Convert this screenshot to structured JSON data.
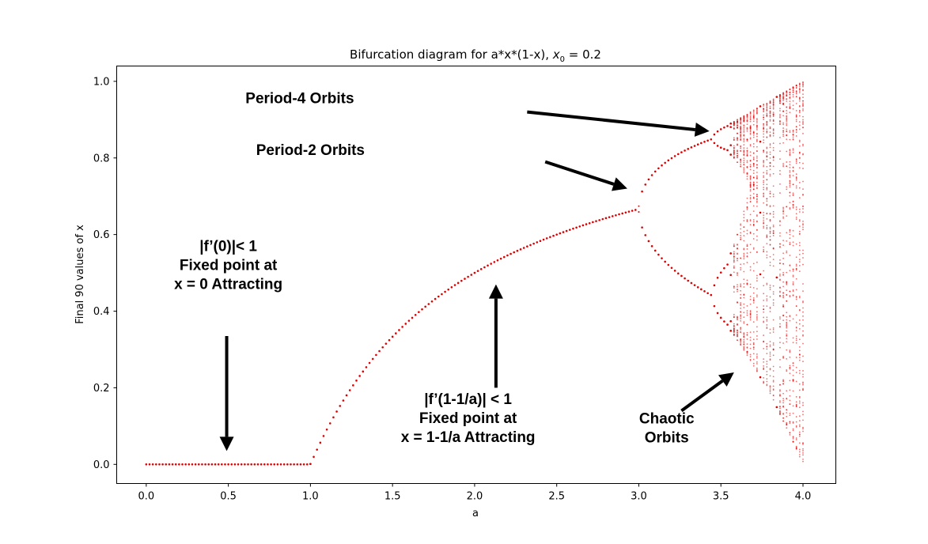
{
  "chart_data": {
    "type": "scatter",
    "title": "Bifurcation diagram for a*x*(1-x), ",
    "title_math": "x",
    "title_math_sub": "0",
    "title_math_rest": " = 0.2",
    "xlabel": "a",
    "ylabel": "Final 90 values of x",
    "xlim": [
      -0.18,
      4.2
    ],
    "ylim": [
      -0.05,
      1.04
    ],
    "xticks": [
      0.0,
      0.5,
      1.0,
      1.5,
      2.0,
      2.5,
      3.0,
      3.5,
      4.0
    ],
    "xtick_labels": [
      "0.0",
      "0.5",
      "1.0",
      "1.5",
      "2.0",
      "2.5",
      "3.0",
      "3.5",
      "4.0"
    ],
    "yticks": [
      0.0,
      0.2,
      0.4,
      0.6,
      0.8,
      1.0
    ],
    "ytick_labels": [
      "0.0",
      "0.2",
      "0.4",
      "0.6",
      "0.8",
      "1.0"
    ],
    "grid": false,
    "series": [
      {
        "map": "logistic",
        "x0": 0.2,
        "a_range": [
          0.0,
          4.0
        ],
        "a_step": 0.02,
        "iterations": 1000,
        "final_values": 90,
        "color": "#dd0000"
      }
    ],
    "annotations": [
      {
        "lines": [
          "Period-4 Orbits"
        ],
        "text_xy": [
          0.935,
          0.955
        ],
        "arrow_from": [
          2.32,
          0.92
        ],
        "arrow_to": [
          3.43,
          0.87
        ]
      },
      {
        "lines": [
          "Period-2 Orbits"
        ],
        "text_xy": [
          1.0,
          0.82
        ],
        "arrow_from": [
          2.43,
          0.79
        ],
        "arrow_to": [
          2.93,
          0.72
        ]
      },
      {
        "lines": [
          "|f’(0)|< 1",
          "Fixed point at",
          "x = 0 Attracting"
        ],
        "text_xy": [
          0.5,
          0.52
        ],
        "arrow_from": [
          0.49,
          0.335
        ],
        "arrow_to": [
          0.49,
          0.035
        ]
      },
      {
        "lines": [
          "|f’(1-1/a)| < 1",
          "Fixed point at",
          "x = 1-1/a Attracting"
        ],
        "text_xy": [
          1.96,
          0.12
        ],
        "arrow_from": [
          2.13,
          0.2
        ],
        "arrow_to": [
          2.13,
          0.47
        ]
      },
      {
        "lines": [
          "Chaotic",
          "Orbits"
        ],
        "text_xy": [
          3.17,
          0.095
        ],
        "arrow_from": [
          3.26,
          0.14
        ],
        "arrow_to": [
          3.58,
          0.24
        ]
      }
    ]
  }
}
